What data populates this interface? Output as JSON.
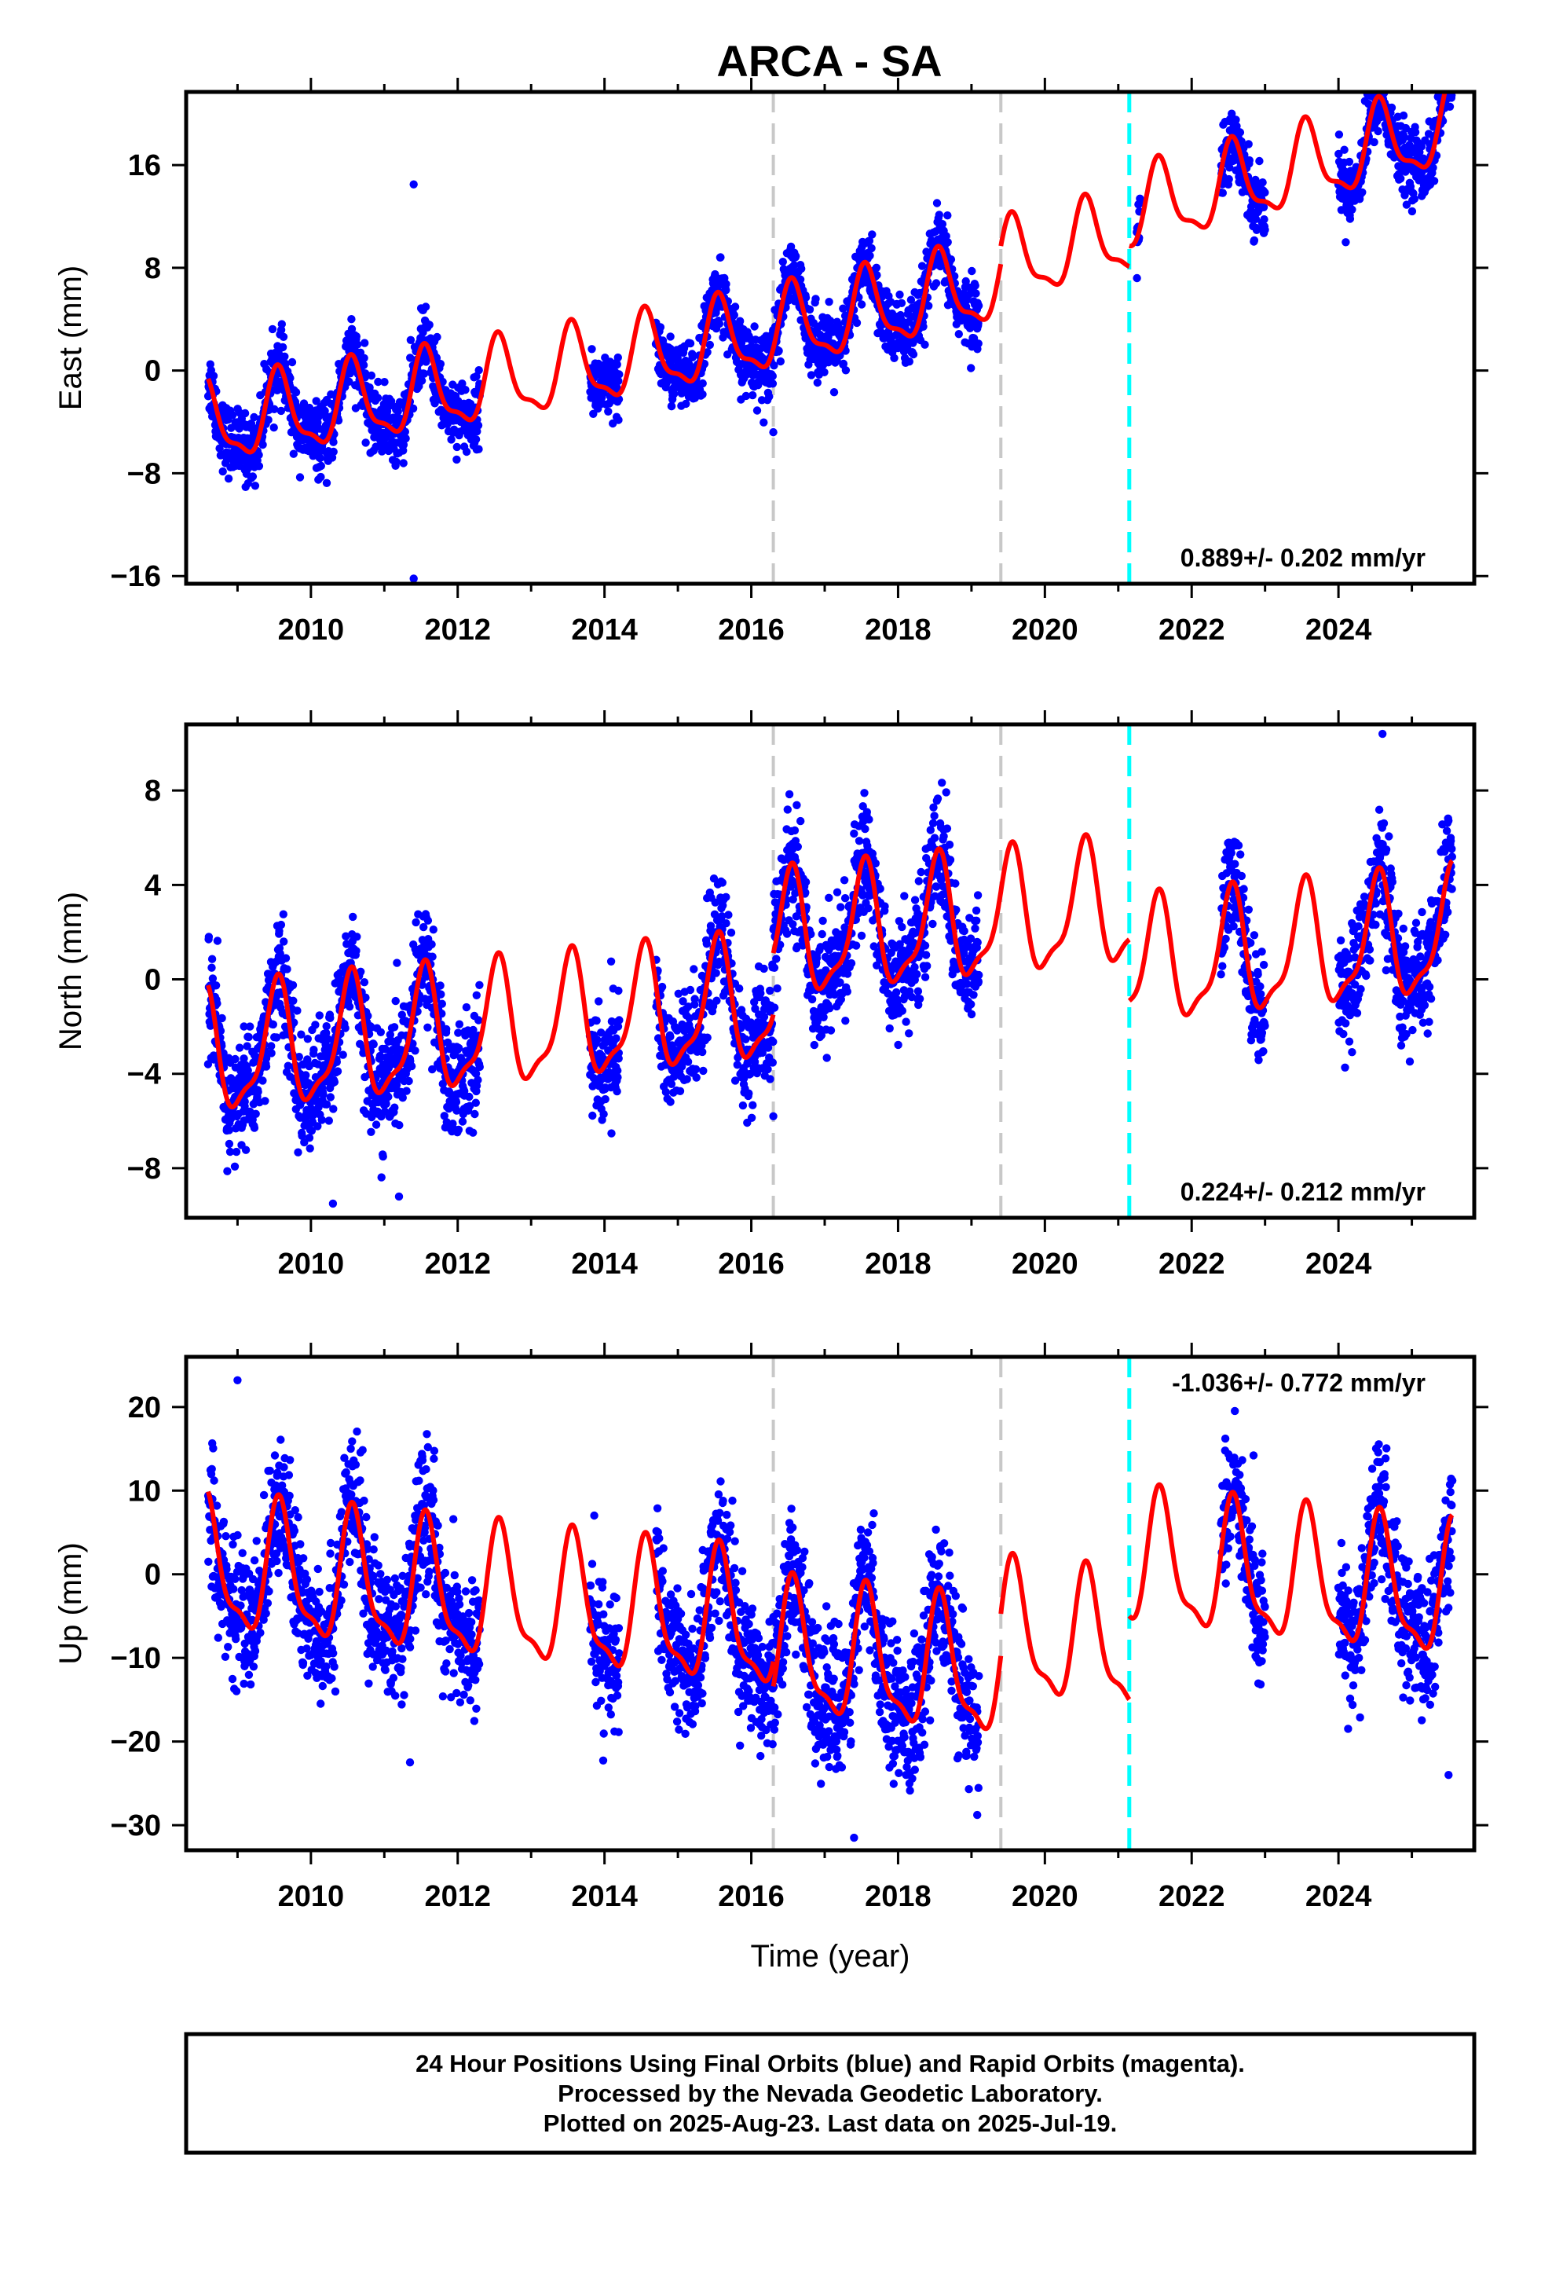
{
  "title": "ARCA - SA",
  "footer": {
    "lines": [
      "24 Hour Positions Using Final Orbits (blue) and Rapid Orbits (magenta).",
      "Processed by the Nevada Geodetic Laboratory.",
      "Plotted on 2025-Aug-23. Last data on 2025-Jul-19."
    ]
  },
  "colors": {
    "data_points": "#0000ff",
    "model_fit": "#ff0000",
    "offset_gray": "#c8c8c8",
    "offset_cyan": "#00ffff"
  },
  "chart_data": [
    {
      "type": "scatter",
      "component": "east",
      "ylabel": "East (mm)",
      "xlabel": "",
      "xlim": [
        2008.3,
        2025.85
      ],
      "ylim": [
        -16.6,
        21.7
      ],
      "xticks": [
        2010,
        2012,
        2014,
        2016,
        2018,
        2020,
        2022,
        2024
      ],
      "yticks": [
        -16,
        -8,
        0,
        8,
        16
      ],
      "ytick_labels": [
        "−16",
        "−8",
        "0",
        "8",
        "16"
      ],
      "rate_label": "0.889+/- 0.202 mm/yr",
      "rate_position": "bottom-right",
      "offset_lines": [
        {
          "x": 2016.3,
          "style": "gray-dashed"
        },
        {
          "x": 2019.4,
          "style": "gray-dashed"
        },
        {
          "x": 2021.15,
          "style": "cyan-dashed"
        }
      ],
      "model": {
        "segments": [
          [
            2008.6,
            2019.4
          ],
          [
            2019.4,
            2021.15
          ],
          [
            2021.15,
            2025.55
          ]
        ],
        "offsets": [
          0,
          1.4,
          3.0
        ],
        "intercept": -4.2,
        "intercept_year": 2008.6,
        "trend": 0.72,
        "annual_amp": 3.0,
        "annual_phase": 4.3,
        "semiannual_amp": 1.0,
        "semiannual_phase": 1.2,
        "accel": 0.028
      },
      "observations": {
        "spans": [
          [
            2008.6,
            2012.3
          ],
          [
            2013.8,
            2014.2
          ],
          [
            2014.7,
            2019.1
          ],
          [
            2021.25,
            2021.3
          ],
          [
            2022.4,
            2023.0
          ],
          [
            2024.0,
            2025.55
          ]
        ],
        "noise_sd": 1.3,
        "outliers": [
          [
            2011.4,
            14.5
          ],
          [
            2011.4,
            -16.2
          ],
          [
            2016.3,
            -4.8
          ]
        ]
      }
    },
    {
      "type": "scatter",
      "component": "north",
      "ylabel": "North (mm)",
      "xlabel": "",
      "xlim": [
        2008.3,
        2025.85
      ],
      "ylim": [
        -10.1,
        10.8
      ],
      "xticks": [
        2010,
        2012,
        2014,
        2016,
        2018,
        2020,
        2022,
        2024
      ],
      "yticks": [
        -8,
        -4,
        0,
        4,
        8
      ],
      "ytick_labels": [
        "−8",
        "−4",
        "0",
        "4",
        "8"
      ],
      "rate_label": "0.224+/- 0.212 mm/yr",
      "rate_position": "bottom-right",
      "offset_lines": [
        {
          "x": 2016.3,
          "style": "gray-dashed"
        },
        {
          "x": 2019.4,
          "style": "gray-dashed"
        },
        {
          "x": 2021.15,
          "style": "cyan-dashed"
        }
      ],
      "model": {
        "segments": [
          [
            2008.6,
            2016.3
          ],
          [
            2016.3,
            2021.15
          ],
          [
            2021.15,
            2025.55
          ]
        ],
        "offsets": [
          0,
          2.6,
          0.0
        ],
        "intercept": -3.3,
        "intercept_year": 2008.6,
        "trend": 0.3,
        "annual_amp": 2.5,
        "annual_phase": 4.5,
        "semiannual_amp": 0.8,
        "semiannual_phase": 0.6,
        "accel": 0.0
      },
      "observations": {
        "spans": [
          [
            2008.6,
            2012.3
          ],
          [
            2013.8,
            2014.2
          ],
          [
            2014.7,
            2019.1
          ],
          [
            2022.4,
            2023.0
          ],
          [
            2024.0,
            2025.55
          ]
        ],
        "noise_sd": 1.2,
        "outliers": [
          [
            2010.3,
            -9.5
          ],
          [
            2011.2,
            -9.2
          ],
          [
            2016.3,
            -5.8
          ],
          [
            2024.6,
            10.4
          ]
        ]
      }
    },
    {
      "type": "scatter",
      "component": "up",
      "ylabel": "Up (mm)",
      "xlabel": "Time (year)",
      "xlim": [
        2008.3,
        2025.85
      ],
      "ylim": [
        -33,
        26
      ],
      "xticks": [
        2010,
        2012,
        2014,
        2016,
        2018,
        2020,
        2022,
        2024
      ],
      "yticks": [
        -30,
        -20,
        -10,
        0,
        10,
        20
      ],
      "ytick_labels": [
        "−30",
        "−20",
        "−10",
        "0",
        "10",
        "20"
      ],
      "rate_label": "-1.036+/- 0.772 mm/yr",
      "rate_position": "top-right",
      "offset_lines": [
        {
          "x": 2016.3,
          "style": "gray-dashed"
        },
        {
          "x": 2019.4,
          "style": "gray-dashed"
        },
        {
          "x": 2021.15,
          "style": "cyan-dashed"
        }
      ],
      "model": {
        "segments": [
          [
            2008.6,
            2016.3
          ],
          [
            2016.3,
            2019.4
          ],
          [
            2019.4,
            2021.15
          ],
          [
            2021.15,
            2025.55
          ]
        ],
        "offsets": [
          0,
          -3.0,
          2.0,
          12.0
        ],
        "intercept": 0.5,
        "intercept_year": 2008.6,
        "trend": -0.9,
        "annual_amp": 7.5,
        "annual_phase": 4.2,
        "semiannual_amp": 2.5,
        "semiannual_phase": 1.0,
        "accel": 0.0
      },
      "observations": {
        "spans": [
          [
            2008.6,
            2012.3
          ],
          [
            2013.8,
            2014.2
          ],
          [
            2014.7,
            2019.1
          ],
          [
            2022.4,
            2023.0
          ],
          [
            2024.0,
            2025.55
          ]
        ],
        "noise_sd": 4.0,
        "outliers": [
          [
            2009.0,
            23.2
          ],
          [
            2017.4,
            -31.5
          ],
          [
            2025.5,
            -24.0
          ],
          [
            2011.35,
            -22.5
          ]
        ]
      }
    }
  ]
}
